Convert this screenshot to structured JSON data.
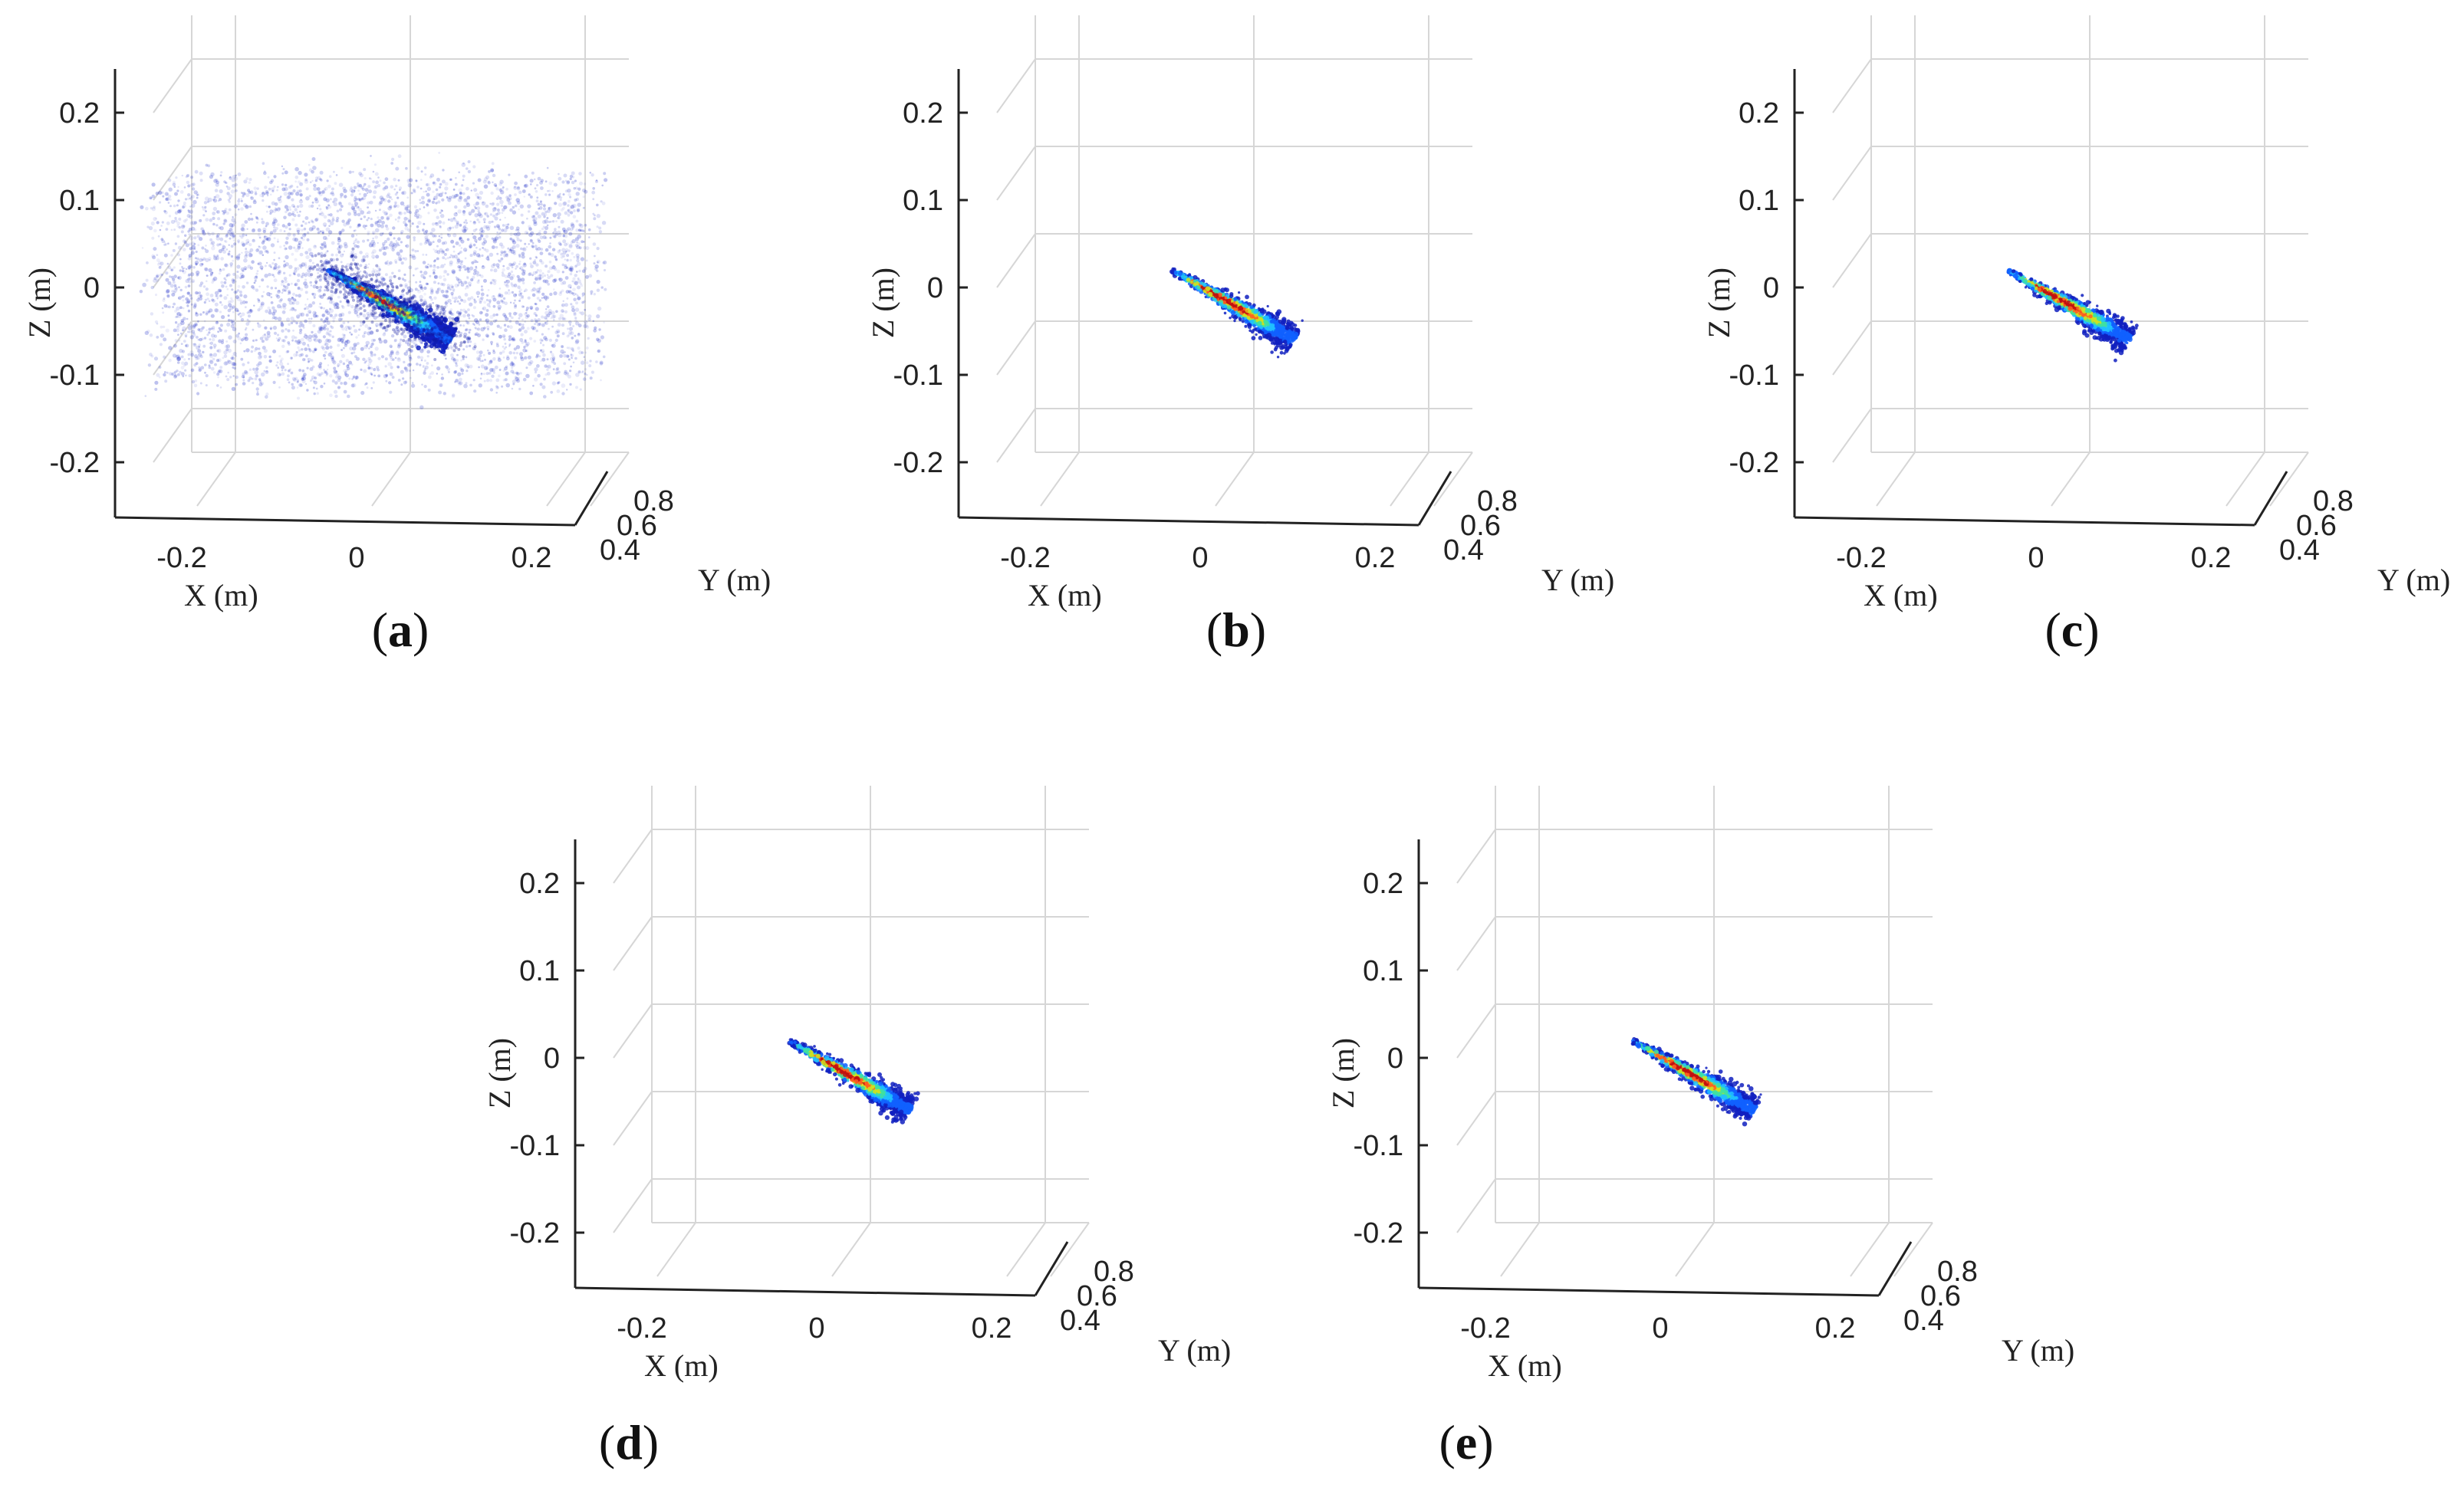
{
  "figure": {
    "panels": [
      {
        "id": "a",
        "label": "a",
        "noise": true
      },
      {
        "id": "b",
        "label": "b",
        "noise": false
      },
      {
        "id": "c",
        "label": "c",
        "noise": false
      },
      {
        "id": "d",
        "label": "d",
        "noise": false
      },
      {
        "id": "e",
        "label": "e",
        "noise": false
      }
    ]
  },
  "chart_data": {
    "type": "scatter",
    "subtype": "3d-point-cloud",
    "xlabel": "X (m)",
    "ylabel": "Y (m)",
    "zlabel": "Z (m)",
    "x_ticks": [
      "-0.2",
      "0",
      "0.2"
    ],
    "y_ticks": [
      "0.4",
      "0.6",
      "0.8"
    ],
    "z_ticks": [
      "0.2",
      "0.1",
      "0",
      "-0.1",
      "-0.2"
    ],
    "xlim": [
      -0.25,
      0.25
    ],
    "ylim": [
      0.4,
      0.8
    ],
    "zlim": [
      -0.25,
      0.25
    ],
    "object": {
      "start": {
        "x": -0.05,
        "z": 0.02
      },
      "end": {
        "x": 0.09,
        "z": -0.06
      }
    },
    "colormap": [
      "#1020c0",
      "#1060ff",
      "#20c0ff",
      "#40e0a0",
      "#d0e020",
      "#ff6020",
      "#c01010"
    ],
    "noise_color": "#2030c8"
  }
}
